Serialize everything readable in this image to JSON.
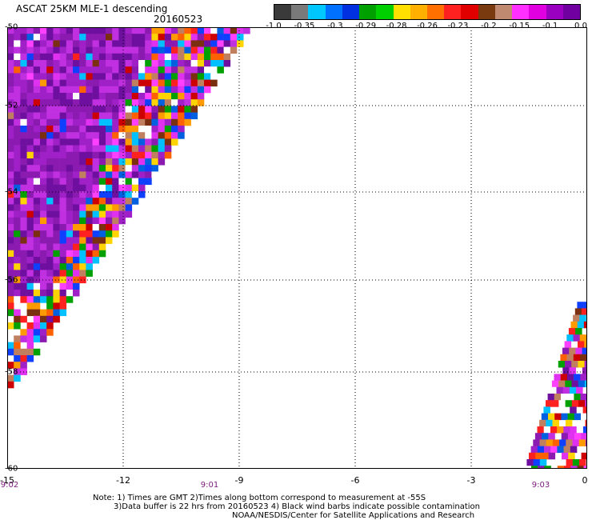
{
  "header": {
    "title": "ASCAT 25KM MLE-1 descending",
    "date": "20160523"
  },
  "colorbar": {
    "colors": [
      "#3a3a3a",
      "#7a7a7a",
      "#00c8ff",
      "#0070ff",
      "#0030e0",
      "#00a000",
      "#00d000",
      "#ffe000",
      "#ffb000",
      "#ff7000",
      "#ff2020",
      "#e00000",
      "#7a3a10",
      "#c08a70",
      "#ff30ff",
      "#e000e0",
      "#9a00c0",
      "#7000a0"
    ],
    "labels": [
      "-1.0",
      "-0.35",
      "-0.3",
      "-0.29",
      "-0.28",
      "-0.26",
      "-0.23",
      "-0.2",
      "-0.15",
      "-0.1",
      "0.0"
    ]
  },
  "chart_data": {
    "type": "heatmap",
    "xlim": [
      -15,
      0
    ],
    "ylim": [
      -60,
      -50
    ],
    "x_ticks": [
      "-15",
      "-12",
      "-9",
      "-6",
      "-3",
      "0"
    ],
    "y_ticks": [
      "-50",
      "-52",
      "-54",
      "-56",
      "-58",
      "-60"
    ],
    "time_labels": [
      {
        "x": -15,
        "label": "9:02"
      },
      {
        "x": -10,
        "label": "9:01"
      },
      {
        "x": -1.3,
        "label": "9:03"
      }
    ],
    "palette": [
      "#6e0fa0",
      "#8a1ab0",
      "#a020c8",
      "#c030e0",
      "#e030f0",
      "#ff40ff",
      "#ffd400",
      "#ff9a00",
      "#ff6000",
      "#ff2020",
      "#cc0000",
      "#7a3010",
      "#c08060",
      "#00a000",
      "#1040ff",
      "#0060e0",
      "#00c0ff",
      "#ffffff"
    ]
  },
  "notes": [
    "Note: 1) Times are GMT 2)Times along bottom correspond to measurement at -55S",
    "3)Data buffer is 22 hrs from 20160523 4) Black wind barbs indicate possible contamination",
    "NOAA/NESDIS/Center for Satellite Applications and Research"
  ]
}
